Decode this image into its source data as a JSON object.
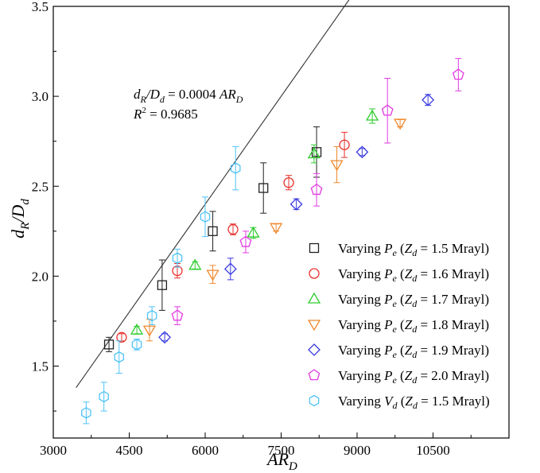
{
  "chart_data": {
    "type": "scatter",
    "xlabel": "AR_D",
    "ylabel": "d_R/D_d",
    "xlim": [
      3000,
      12000
    ],
    "ylim": [
      1.1,
      3.5
    ],
    "x_ticks": [
      3000,
      4500,
      6000,
      7500,
      9000,
      10500
    ],
    "y_ticks": [
      1.5,
      2.0,
      2.5,
      3.0,
      3.5
    ],
    "grid": false,
    "legend_position": "bottom-right",
    "fit_line": {
      "slope": 0.0004,
      "x_range": [
        3450,
        10100
      ]
    },
    "annotation": {
      "equation": "dR/Dd = 0.0004 ARD",
      "r_squared": "R² = 0.9685"
    },
    "series": [
      {
        "name": "Varying Pe (Zd = 1.5 Mrayl)",
        "var": "P",
        "sub": "e",
        "z": "1.5",
        "marker": "square",
        "color": "#222222",
        "points": [
          {
            "x": 4100,
            "y": 1.62,
            "err": 0.04
          },
          {
            "x": 5150,
            "y": 1.95,
            "err": 0.14
          },
          {
            "x": 6150,
            "y": 2.25,
            "err": 0.11
          },
          {
            "x": 7150,
            "y": 2.49,
            "err": 0.14
          },
          {
            "x": 8200,
            "y": 2.69,
            "err": 0.14
          }
        ]
      },
      {
        "name": "Varying Pe (Zd = 1.6 Mrayl)",
        "var": "P",
        "sub": "e",
        "z": "1.6",
        "marker": "circle",
        "color": "#e8302a",
        "points": [
          {
            "x": 4350,
            "y": 1.66,
            "err": 0.02
          },
          {
            "x": 5450,
            "y": 2.03,
            "err": 0.04
          },
          {
            "x": 6550,
            "y": 2.26,
            "err": 0.03
          },
          {
            "x": 7650,
            "y": 2.52,
            "err": 0.04
          },
          {
            "x": 8750,
            "y": 2.73,
            "err": 0.07
          }
        ]
      },
      {
        "name": "Varying Pe (Zd = 1.7 Mrayl)",
        "var": "P",
        "sub": "e",
        "z": "1.7",
        "marker": "triangle-up",
        "color": "#2ecc2e",
        "points": [
          {
            "x": 4650,
            "y": 1.7,
            "err": 0.02
          },
          {
            "x": 5800,
            "y": 2.06,
            "err": 0.02
          },
          {
            "x": 6950,
            "y": 2.24,
            "err": 0.03
          },
          {
            "x": 8150,
            "y": 2.68,
            "err": 0.05
          },
          {
            "x": 9300,
            "y": 2.89,
            "err": 0.04
          }
        ]
      },
      {
        "name": "Varying Pe (Zd = 1.8 Mrayl)",
        "var": "P",
        "sub": "e",
        "z": "1.8",
        "marker": "triangle-down",
        "color": "#f0892e",
        "points": [
          {
            "x": 4900,
            "y": 1.7,
            "err": 0.06
          },
          {
            "x": 6150,
            "y": 2.01,
            "err": 0.05
          },
          {
            "x": 7400,
            "y": 2.27,
            "err": 0.02
          },
          {
            "x": 8600,
            "y": 2.62,
            "err": 0.1
          },
          {
            "x": 9850,
            "y": 2.85,
            "err": 0.02
          }
        ]
      },
      {
        "name": "Varying Pe (Zd = 1.9 Mrayl)",
        "var": "P",
        "sub": "e",
        "z": "1.9",
        "marker": "diamond",
        "color": "#3a3ae0",
        "points": [
          {
            "x": 5200,
            "y": 1.66,
            "err": 0.02
          },
          {
            "x": 6500,
            "y": 2.04,
            "err": 0.06
          },
          {
            "x": 7800,
            "y": 2.4,
            "err": 0.03
          },
          {
            "x": 9100,
            "y": 2.69,
            "err": 0.02
          },
          {
            "x": 10400,
            "y": 2.98,
            "err": 0.03
          }
        ]
      },
      {
        "name": "Varying Pe (Zd = 2.0 Mrayl)",
        "var": "P",
        "sub": "e",
        "z": "2.0",
        "marker": "pentagon",
        "color": "#e23ae2",
        "points": [
          {
            "x": 5450,
            "y": 1.78,
            "err": 0.05
          },
          {
            "x": 6800,
            "y": 2.19,
            "err": 0.06
          },
          {
            "x": 8200,
            "y": 2.48,
            "err": 0.09
          },
          {
            "x": 9600,
            "y": 2.92,
            "err": 0.18
          },
          {
            "x": 11000,
            "y": 3.12,
            "err": 0.09
          }
        ]
      },
      {
        "name": "Varying Vd (Zd = 1.5 Mrayl)",
        "var": "V",
        "sub": "d",
        "z": "1.5",
        "marker": "hexagon",
        "color": "#4fc3f7",
        "points": [
          {
            "x": 3650,
            "y": 1.24,
            "err": 0.06
          },
          {
            "x": 4000,
            "y": 1.33,
            "err": 0.08
          },
          {
            "x": 4300,
            "y": 1.55,
            "err": 0.09
          },
          {
            "x": 4650,
            "y": 1.62,
            "err": 0.03
          },
          {
            "x": 4950,
            "y": 1.78,
            "err": 0.05
          },
          {
            "x": 5450,
            "y": 2.1,
            "err": 0.05
          },
          {
            "x": 6000,
            "y": 2.33,
            "err": 0.11
          },
          {
            "x": 6600,
            "y": 2.6,
            "err": 0.12
          }
        ]
      }
    ]
  },
  "legend_text": {
    "varying": "Varying ",
    "z_var": "Z",
    "z_sub": "d",
    "eq": " = ",
    "unit": " Mrayl)"
  },
  "axis_text": {
    "x_main": "AR",
    "x_sub": "D",
    "y_main1": "d",
    "y_sub1": "R",
    "y_slash": "/D",
    "y_sub2": "d"
  },
  "annotation_text": {
    "eq_d": "d",
    "eq_R": "R",
    "eq_slash": "/D",
    "eq_d2": "d",
    "eq_rhs": " = 0.0004 ",
    "eq_AR": "AR",
    "eq_D": "D",
    "r2": "R",
    "r2_sup": "2",
    "r2_val": " = 0.9685"
  }
}
